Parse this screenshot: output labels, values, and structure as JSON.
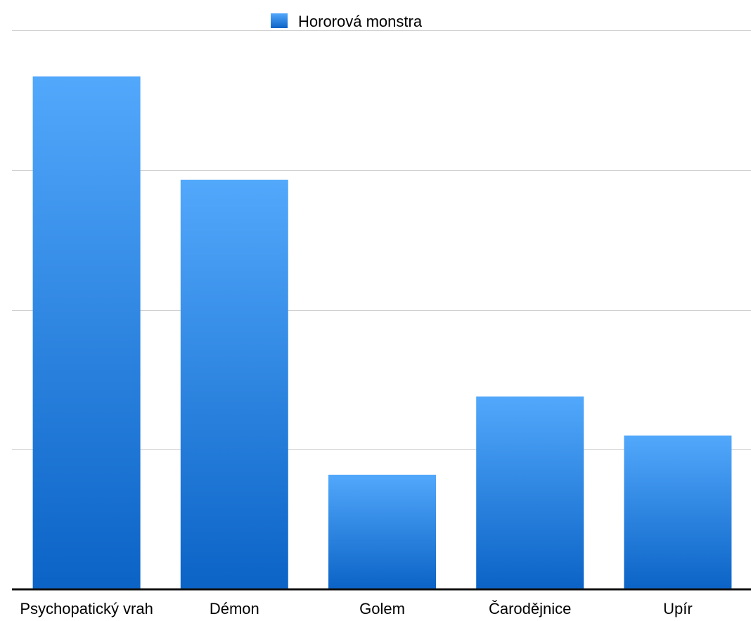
{
  "chart_data": {
    "type": "bar",
    "title": "",
    "xlabel": "",
    "ylabel": "",
    "categories": [
      "Psychopatický vrah",
      "Démon",
      "Golem",
      "Čarodějnice",
      "Upír"
    ],
    "series": [
      {
        "name": "Hororová monstra",
        "values": [
          36.7,
          29.3,
          8.2,
          13.8,
          11.0
        ]
      }
    ],
    "ylim": [
      0,
      40
    ],
    "y_gridlines": [
      10,
      20,
      30,
      40
    ],
    "y_tick_labels_shown": false,
    "grid": true,
    "legend": {
      "position": "top-center",
      "label": "Hororová monstra"
    },
    "colors": {
      "bar_top": "#52a8fb",
      "bar_bottom": "#0b63c6",
      "grid": "#d0d0d0",
      "axis": "#111111",
      "text": "#000000",
      "legend_swatch_top": "#52a8fb",
      "legend_swatch_bottom": "#0b63c6"
    }
  }
}
